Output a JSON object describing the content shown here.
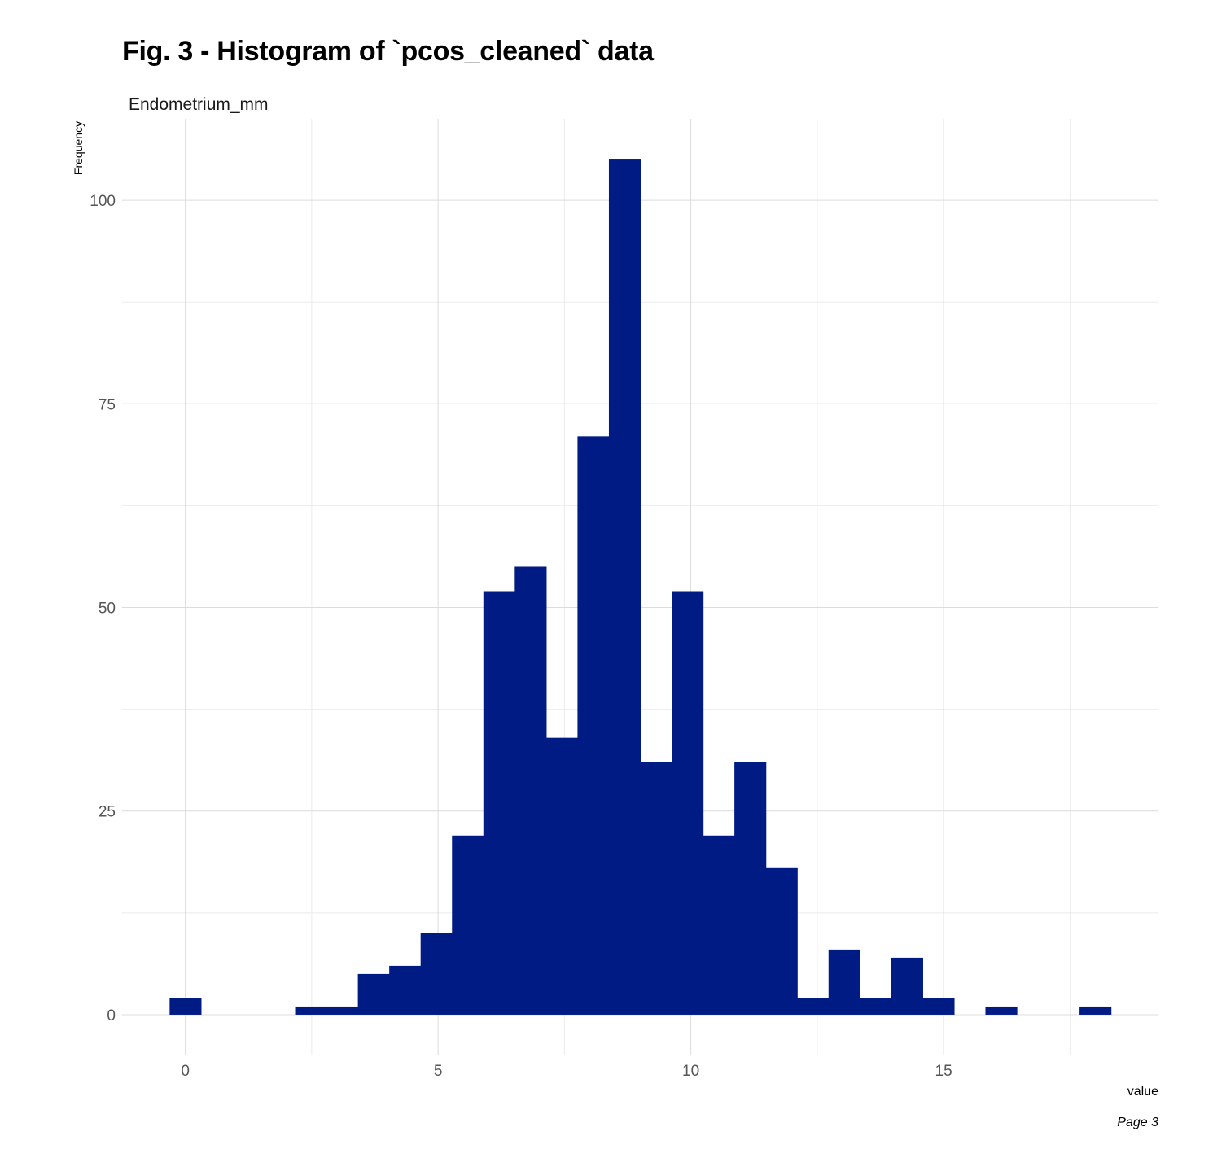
{
  "title": "Fig. 3 - Histogram of `pcos_cleaned` data",
  "caption": "Page 3",
  "colors": {
    "bar": "#001c84",
    "grid_major": "#dcdcdc",
    "grid_minor": "#ebebeb",
    "background": "#ffffff"
  },
  "chart_data": {
    "type": "bar",
    "facet_label": "Endometrium_mm",
    "xlabel": "value",
    "ylabel": "Frequency",
    "xlim": [
      -1.25,
      19.25
    ],
    "ylim": [
      -5,
      110
    ],
    "x_ticks": [
      0,
      5,
      10,
      15
    ],
    "x_minor_ticks": [
      2.5,
      7.5,
      12.5,
      17.5
    ],
    "y_ticks": [
      0,
      25,
      50,
      75,
      100
    ],
    "y_minor_ticks": [
      12.5,
      37.5,
      62.5,
      87.5
    ],
    "grid": true,
    "bin_width": 0.6207,
    "bin_centers": [
      0,
      0.6207,
      1.2414,
      1.8621,
      2.4828,
      3.1034,
      3.7241,
      4.3448,
      4.9655,
      5.5862,
      6.2069,
      6.8276,
      7.4483,
      8.069,
      8.6897,
      9.3103,
      9.931,
      10.5517,
      11.1724,
      11.7931,
      12.4138,
      13.0345,
      13.6552,
      14.2759,
      14.8966,
      15.5172,
      16.1379,
      16.7586,
      17.3793,
      18
    ],
    "values": [
      2,
      0,
      0,
      0,
      1,
      1,
      5,
      6,
      10,
      22,
      52,
      55,
      34,
      71,
      105,
      31,
      52,
      22,
      31,
      18,
      2,
      8,
      2,
      7,
      2,
      0,
      1,
      0,
      0,
      1
    ]
  }
}
